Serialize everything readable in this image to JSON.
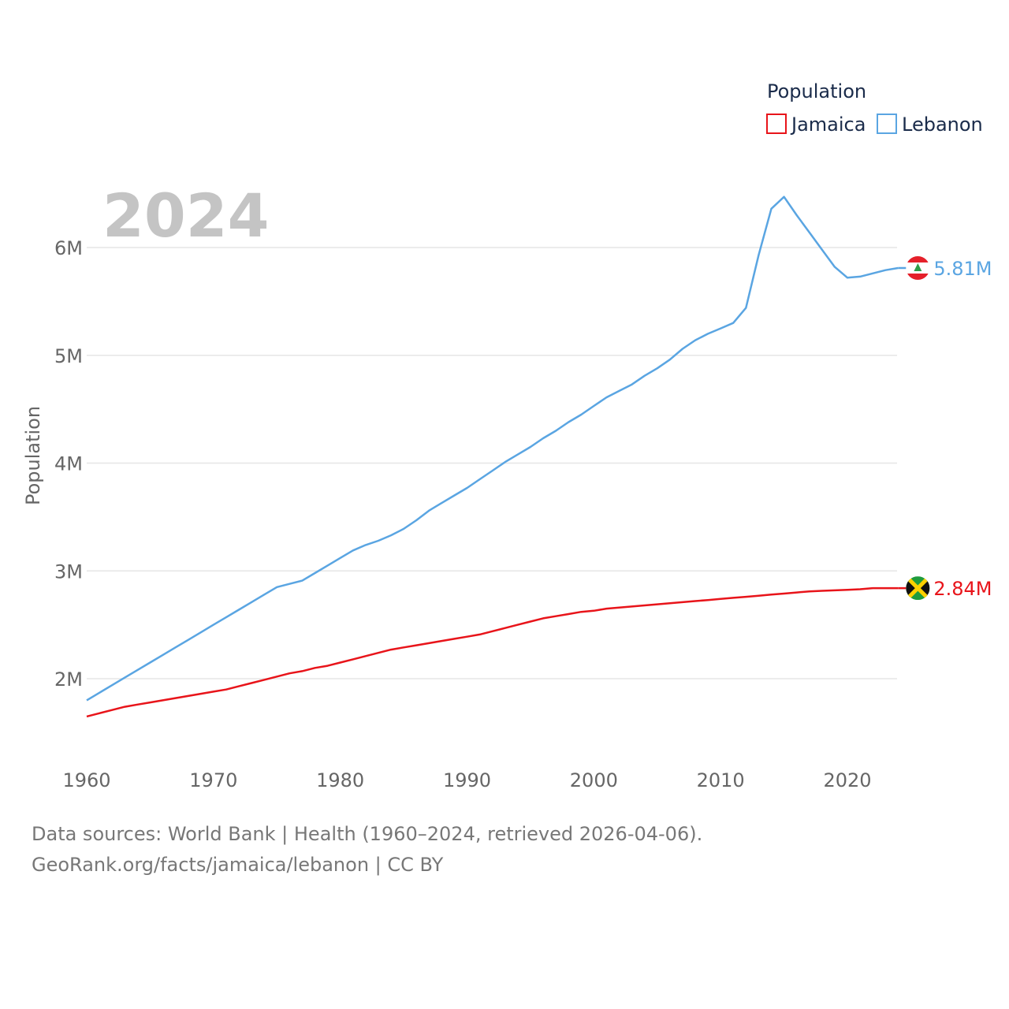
{
  "chart_data": {
    "type": "line",
    "title": "",
    "year_label": "2024",
    "xlabel": "",
    "ylabel": "Population",
    "x": [
      1960,
      1961,
      1962,
      1963,
      1964,
      1965,
      1966,
      1967,
      1968,
      1969,
      1970,
      1971,
      1972,
      1973,
      1974,
      1975,
      1976,
      1977,
      1978,
      1979,
      1980,
      1981,
      1982,
      1983,
      1984,
      1985,
      1986,
      1987,
      1988,
      1989,
      1990,
      1991,
      1992,
      1993,
      1994,
      1995,
      1996,
      1997,
      1998,
      1999,
      2000,
      2001,
      2002,
      2003,
      2004,
      2005,
      2006,
      2007,
      2008,
      2009,
      2010,
      2011,
      2012,
      2013,
      2014,
      2015,
      2016,
      2017,
      2018,
      2019,
      2020,
      2021,
      2022,
      2023,
      2024
    ],
    "xlim": [
      1960,
      2024
    ],
    "ylim": [
      1.3,
      6.5
    ],
    "xticks": [
      "1960",
      "1970",
      "1980",
      "1990",
      "2000",
      "2010",
      "2020"
    ],
    "yticks": [
      {
        "value": 2,
        "label": "2M"
      },
      {
        "value": 3,
        "label": "3M"
      },
      {
        "value": 4,
        "label": "4M"
      },
      {
        "value": 5,
        "label": "5M"
      },
      {
        "value": 6,
        "label": "6M"
      }
    ],
    "legend_title": "Population",
    "legend_position": "top-right",
    "series": [
      {
        "name": "Jamaica",
        "color": "#e8141a",
        "end_label": "2.84M",
        "flag": "jamaica-flag-icon",
        "values": [
          1.65,
          1.68,
          1.71,
          1.74,
          1.76,
          1.78,
          1.8,
          1.82,
          1.84,
          1.86,
          1.88,
          1.9,
          1.93,
          1.96,
          1.99,
          2.02,
          2.05,
          2.07,
          2.1,
          2.12,
          2.15,
          2.18,
          2.21,
          2.24,
          2.27,
          2.29,
          2.31,
          2.33,
          2.35,
          2.37,
          2.39,
          2.41,
          2.44,
          2.47,
          2.5,
          2.53,
          2.56,
          2.58,
          2.6,
          2.62,
          2.63,
          2.65,
          2.66,
          2.67,
          2.68,
          2.69,
          2.7,
          2.71,
          2.72,
          2.73,
          2.74,
          2.75,
          2.76,
          2.77,
          2.78,
          2.79,
          2.8,
          2.81,
          2.815,
          2.82,
          2.825,
          2.83,
          2.84,
          2.84,
          2.84
        ]
      },
      {
        "name": "Lebanon",
        "color": "#5aa5e2",
        "end_label": "5.81M",
        "flag": "lebanon-flag-icon",
        "values": [
          1.8,
          1.87,
          1.94,
          2.01,
          2.08,
          2.15,
          2.22,
          2.29,
          2.36,
          2.43,
          2.5,
          2.57,
          2.64,
          2.71,
          2.78,
          2.85,
          2.88,
          2.91,
          2.98,
          3.05,
          3.12,
          3.19,
          3.24,
          3.28,
          3.33,
          3.39,
          3.47,
          3.56,
          3.63,
          3.7,
          3.77,
          3.85,
          3.93,
          4.01,
          4.08,
          4.15,
          4.23,
          4.3,
          4.38,
          4.45,
          4.53,
          4.61,
          4.67,
          4.73,
          4.81,
          4.88,
          4.96,
          5.06,
          5.14,
          5.2,
          5.25,
          5.3,
          5.44,
          5.93,
          6.36,
          6.47,
          6.3,
          6.14,
          5.98,
          5.82,
          5.72,
          5.73,
          5.76,
          5.79,
          5.81
        ]
      }
    ]
  },
  "source": {
    "line1": "Data sources: World Bank | Health (1960–2024, retrieved 2026-04-06).",
    "line2": "GeoRank.org/facts/jamaica/lebanon | CC BY"
  }
}
